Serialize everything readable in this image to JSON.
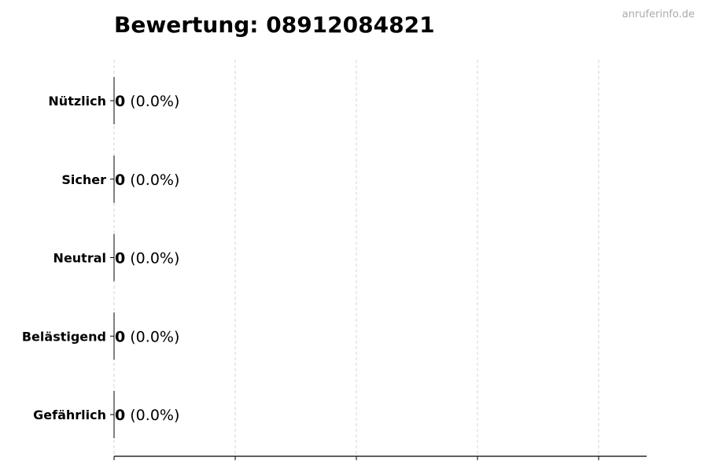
{
  "watermark": "anruferinfo.de",
  "chart_data": {
    "type": "bar",
    "orientation": "horizontal",
    "title": "Bewertung: 08912084821",
    "xlabel": "",
    "ylabel": "",
    "categories": [
      "Nützlich",
      "Sicher",
      "Neutral",
      "Belästigend",
      "Gefährlich"
    ],
    "values": [
      0,
      0,
      0,
      0,
      0
    ],
    "data_labels": [
      {
        "count": "0",
        "percent": "(0.0%)"
      },
      {
        "count": "0",
        "percent": "(0.0%)"
      },
      {
        "count": "0",
        "percent": "(0.0%)"
      },
      {
        "count": "0",
        "percent": "(0.0%)"
      },
      {
        "count": "0",
        "percent": "(0.0%)"
      }
    ],
    "x_tick_labels": [],
    "grid": "vertical dashed",
    "legend": "none",
    "colors": {
      "bar_edge": "#000000",
      "grid": "#cccccc",
      "watermark": "#aaaaaa"
    }
  }
}
